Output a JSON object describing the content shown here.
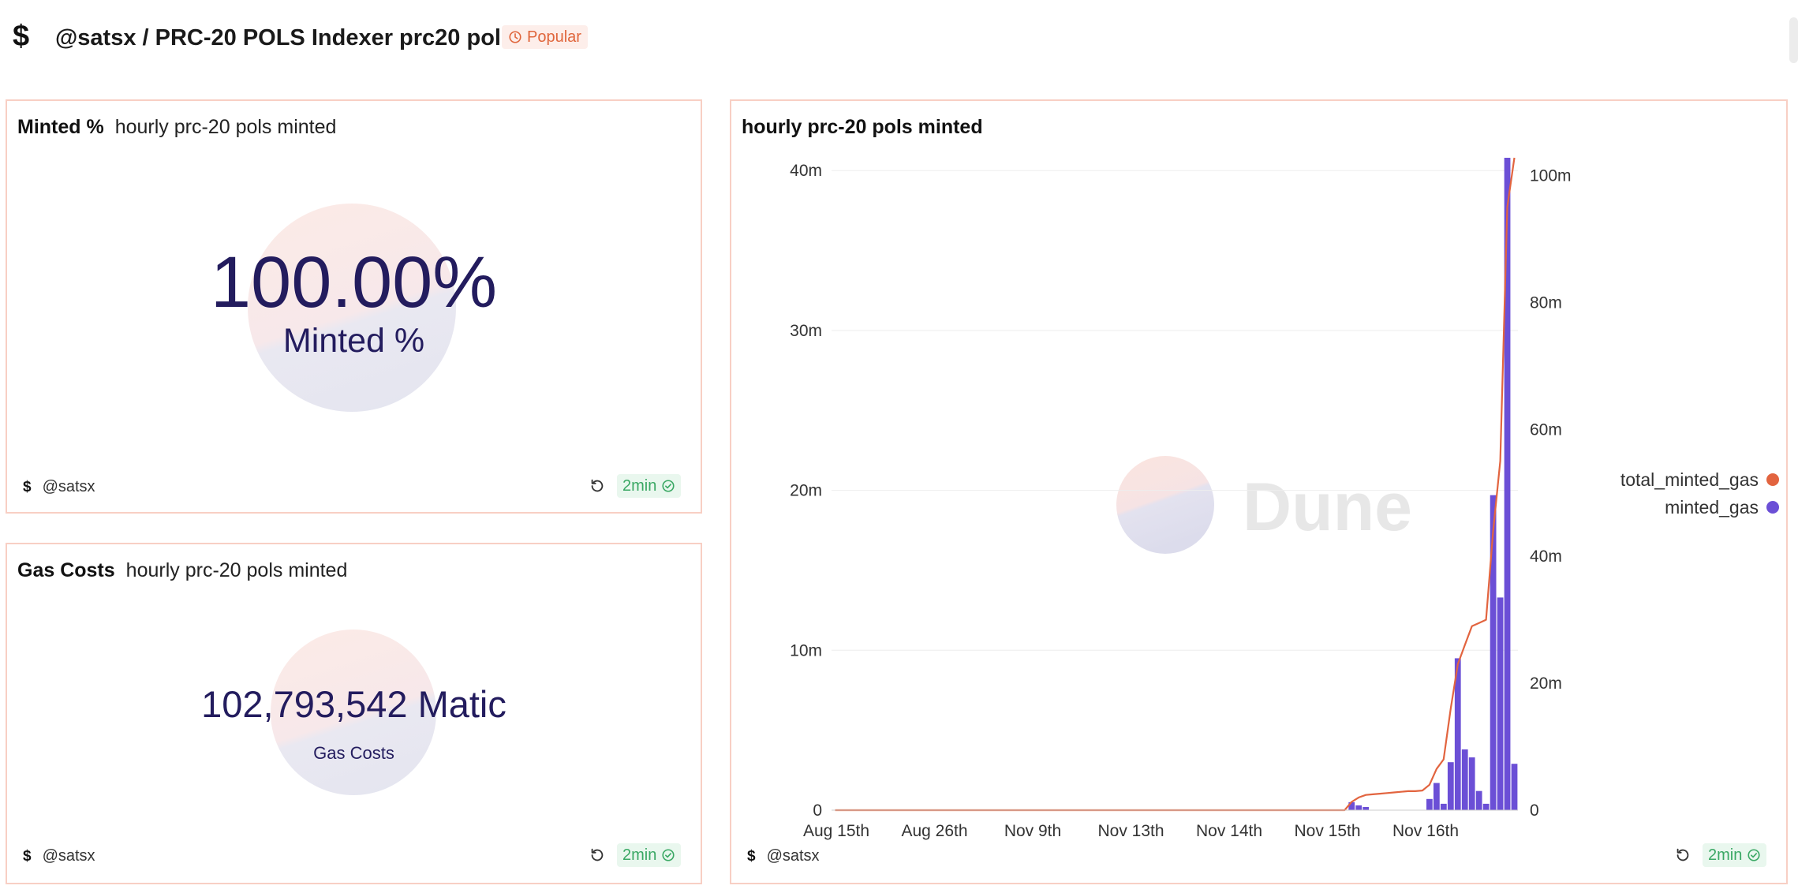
{
  "header": {
    "logo": "$",
    "title": "@satsx / PRC-20 POLS Indexer prc20 pols",
    "badge": "Popular"
  },
  "panels": {
    "minted": {
      "title": "Minted %",
      "subtitle": "hourly prc-20 pols minted",
      "value": "100.00%",
      "label": "Minted %",
      "author": "@satsx",
      "freshness": "2min"
    },
    "gas": {
      "title": "Gas Costs",
      "subtitle": "hourly prc-20 pols minted",
      "value": "102,793,542 Matic",
      "label": "Gas Costs",
      "author": "@satsx",
      "freshness": "2min"
    },
    "chart": {
      "title": "hourly prc-20 pols minted",
      "author": "@satsx",
      "freshness": "2min",
      "watermark": "Dune"
    }
  },
  "colors": {
    "accent": "#e0663c",
    "bar": "#6b4fd6",
    "line": "#e2643f",
    "border": "#f8cfc4",
    "counter": "#231c5e",
    "fresh": "#3aa864"
  },
  "icons": {
    "logo": "dollar-icon",
    "badge": "clock-icon",
    "refresh": "refresh-icon",
    "fresh": "check-circle-icon"
  },
  "chart_data": {
    "type": "bar+line",
    "title": "hourly prc-20 pols minted",
    "x_ticks": [
      "Aug 15th",
      "Aug 26th",
      "Nov 9th",
      "Nov 13th",
      "Nov 14th",
      "Nov 15th",
      "Nov 16th"
    ],
    "y_left": {
      "ticks": [
        "0",
        "10m",
        "20m",
        "30m",
        "40m"
      ],
      "range": [
        0,
        40800000
      ]
    },
    "y_right": {
      "ticks": [
        "0",
        "20m",
        "40m",
        "60m",
        "80m",
        "100m"
      ],
      "range": [
        0,
        102793542
      ]
    },
    "series": [
      {
        "name": "minted_gas",
        "type": "bar",
        "axis": "left",
        "values": [
          0,
          0,
          0,
          0,
          0,
          0,
          0,
          0,
          0,
          0,
          0,
          0,
          0,
          0,
          0,
          0,
          0,
          0,
          0,
          0,
          0,
          0,
          0,
          0,
          0,
          0,
          0,
          0,
          0,
          0,
          0,
          0,
          0,
          0,
          0,
          0,
          0,
          0,
          0,
          0,
          0,
          0,
          0,
          0,
          0,
          0,
          0,
          0,
          0,
          0,
          0,
          0,
          0,
          0,
          0,
          0,
          0,
          0,
          0,
          0,
          0,
          0,
          0,
          0,
          0,
          0,
          0,
          0,
          0,
          0,
          0,
          0,
          0,
          500000,
          300000,
          200000,
          0,
          0,
          0,
          0,
          0,
          0,
          0,
          0,
          700000,
          1700000,
          400000,
          3000000,
          9500000,
          3800000,
          3300000,
          1200000,
          400000,
          19700000,
          13300000,
          40800000,
          2900000
        ]
      },
      {
        "name": "total_minted_gas",
        "type": "line",
        "axis": "right",
        "values": [
          0,
          0,
          0,
          0,
          0,
          0,
          0,
          0,
          0,
          0,
          0,
          0,
          0,
          0,
          0,
          0,
          0,
          0,
          0,
          0,
          0,
          0,
          0,
          0,
          0,
          0,
          0,
          0,
          0,
          0,
          0,
          0,
          0,
          0,
          0,
          0,
          0,
          0,
          0,
          0,
          0,
          0,
          0,
          0,
          0,
          0,
          0,
          0,
          0,
          0,
          0,
          0,
          0,
          0,
          0,
          0,
          0,
          0,
          0,
          0,
          0,
          0,
          0,
          0,
          0,
          0,
          0,
          0,
          0,
          0,
          0,
          0,
          0,
          1300000,
          2000000,
          2400000,
          2500000,
          2600000,
          2700000,
          2800000,
          2900000,
          3000000,
          3000000,
          3100000,
          4000000,
          6500000,
          8000000,
          16000000,
          23000000,
          26000000,
          29000000,
          29500000,
          30000000,
          44000000,
          55000000,
          95000000,
          102793542
        ]
      }
    ],
    "legend": {
      "placement": "right",
      "entries": [
        "total_minted_gas",
        "minted_gas"
      ]
    },
    "grid": true
  }
}
